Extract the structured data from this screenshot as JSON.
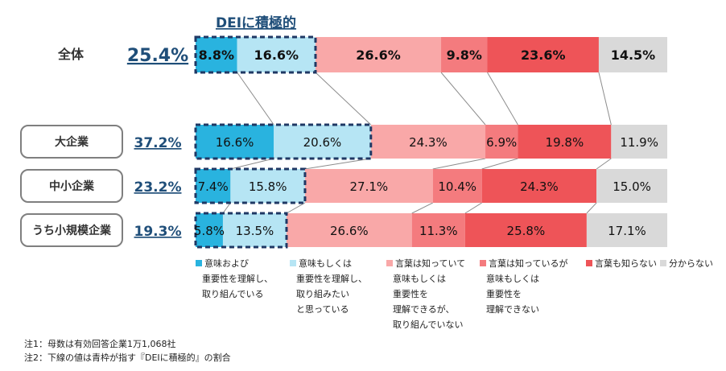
{
  "chart_data": {
    "type": "bar",
    "stacked": true,
    "orientation": "horizontal",
    "highlight_label": "DEIに積極的",
    "categories": [
      "全体",
      "大企業",
      "中小企業",
      "うち小規模企業"
    ],
    "highlight_totals": [
      "25.4%",
      "37.2%",
      "23.2%",
      "19.3%"
    ],
    "series": [
      {
        "name": "意味および 重要性を理解し、 取り組んでいる",
        "color": "#29b3df",
        "values": [
          8.8,
          16.6,
          7.4,
          5.8
        ]
      },
      {
        "name": "意味もしくは 重要性を理解し、 取り組みたい と思っている",
        "color": "#b6e5f4",
        "values": [
          16.6,
          20.6,
          15.8,
          13.5
        ]
      },
      {
        "name": "言葉は知っていて 意味もしくは 重要性を 理解できるが、 取り組んでいない",
        "color": "#f9a8a8",
        "values": [
          26.6,
          24.3,
          27.1,
          26.6
        ]
      },
      {
        "name": "言葉は知っているが 意味もしくは 重要性を 理解できない",
        "color": "#f47b7e",
        "values": [
          9.8,
          6.9,
          10.4,
          11.3
        ]
      },
      {
        "name": "言葉も知らない",
        "color": "#ee5458",
        "values": [
          23.6,
          19.8,
          24.3,
          25.8
        ]
      },
      {
        "name": "分からない",
        "color": "#d9d9d9",
        "values": [
          14.5,
          11.9,
          15.0,
          17.1
        ]
      }
    ],
    "value_labels": [
      [
        "8.8%",
        "16.6%",
        "26.6%",
        "9.8%",
        "23.6%",
        "14.5%"
      ],
      [
        "16.6%",
        "20.6%",
        "24.3%",
        "6.9%",
        "19.8%",
        "11.9%"
      ],
      [
        "7.4%",
        "15.8%",
        "27.1%",
        "10.4%",
        "24.3%",
        "15.0%"
      ],
      [
        "5.8%",
        "13.5%",
        "26.6%",
        "11.3%",
        "25.8%",
        "17.1%"
      ]
    ],
    "legend_position": "bottom",
    "grid": false
  },
  "legend_lines": [
    [
      "意味および",
      "重要性を理解し、",
      "取り組んでいる"
    ],
    [
      "意味もしくは",
      "重要性を理解し、",
      "取り組みたい",
      "と思っている"
    ],
    [
      "言葉は知っていて",
      "意味もしくは",
      "重要性を",
      "理解できるが、",
      "取り組んでいない"
    ],
    [
      "言葉は知っているが",
      "意味もしくは",
      "重要性を",
      "理解できない"
    ],
    [
      "言葉も知らない"
    ],
    [
      "分からない"
    ]
  ],
  "notes": {
    "note1": "注1：母数は有効回答企業1万1,068社",
    "note2": "注2：下線の値は青枠が指す『DEIに積極的』の割合"
  },
  "colors": {
    "accent_blue": "#1f4e79",
    "highlight_border": "#1f3864",
    "connector": "#8c8c8c",
    "category_box_border": "#7f7f7f"
  }
}
